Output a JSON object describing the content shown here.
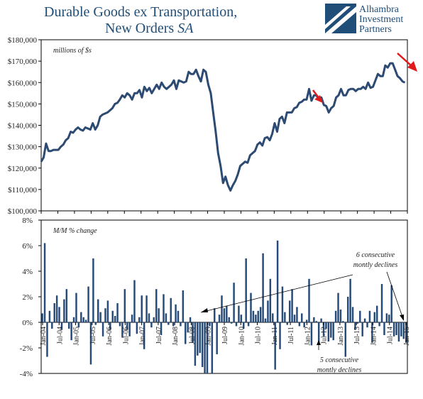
{
  "title": {
    "line1": "Durable Goods ex Transportation,",
    "line2_main": "New Orders",
    "line2_suffix": "SA"
  },
  "logo": {
    "line1": "Alhambra",
    "line2": "Investment",
    "line3": "Partners"
  },
  "colors": {
    "series": "#2c4a72",
    "bars": "#274b78",
    "arrows": "#e01a1a",
    "title": "#1f4e79",
    "text": "#222222"
  },
  "chart_data": [
    {
      "type": "line",
      "unit_label": "millions of $s",
      "ylim": [
        100000,
        180000
      ],
      "y_ticks": [
        "$100,000",
        "$110,000",
        "$120,000",
        "$130,000",
        "$140,000",
        "$150,000",
        "$160,000",
        "$170,000",
        "$180,000"
      ],
      "x_start": "Jan-04",
      "x_end": "Jan-15",
      "values": [
        123000,
        125000,
        131500,
        128000,
        128000,
        128500,
        128500,
        128500,
        130000,
        131000,
        133000,
        134000,
        137000,
        136500,
        138000,
        139000,
        138000,
        137500,
        139000,
        138500,
        138000,
        141000,
        138000,
        140000,
        144000,
        145000,
        145500,
        146000,
        147000,
        148000,
        150000,
        150500,
        152000,
        154000,
        153000,
        155000,
        154000,
        152000,
        155000,
        155000,
        156500,
        153000,
        158000,
        156000,
        157500,
        155000,
        157000,
        159000,
        157000,
        160000,
        158000,
        157000,
        158000,
        159000,
        161000,
        157000,
        161000,
        160500,
        160000,
        160500,
        165000,
        164000,
        164000,
        166000,
        163000,
        160500,
        166000,
        165000,
        159000,
        155000,
        146000,
        137000,
        127000,
        121000,
        113000,
        116000,
        112000,
        109500,
        112000,
        114000,
        117000,
        121000,
        122000,
        123000,
        122500,
        126000,
        127000,
        128000,
        131000,
        132000,
        130500,
        134000,
        134500,
        133000,
        136000,
        141000,
        137000,
        143000,
        144000,
        141000,
        146000,
        146000,
        146000,
        148000,
        148500,
        150500,
        151000,
        152000,
        152000,
        157000,
        151500,
        154000,
        154000,
        152000,
        153000,
        149500,
        149000,
        146000,
        148000,
        149000,
        153000,
        154000,
        157000,
        154000,
        154000,
        156500,
        157000,
        157000,
        156000,
        157000,
        157000,
        158000,
        157000,
        160000,
        157500,
        158000,
        161000,
        164000,
        163000,
        163000,
        168000,
        167000,
        169000,
        169000,
        166000,
        163000,
        162000,
        160500,
        160000
      ],
      "arrow_labels": []
    },
    {
      "type": "bar",
      "unit_label": "M/M % change",
      "ylim": [
        -4,
        8
      ],
      "y_ticks": [
        "-4%",
        "-2%",
        "0%",
        "2%",
        "4%",
        "6%",
        "8%"
      ],
      "x_ticks": [
        "Jan-04",
        "Jul-04",
        "Jan-05",
        "Jul-05",
        "Jan-06",
        "Jul-06",
        "Jan-07",
        "Jul-07",
        "Jan-08",
        "Jul-08",
        "Jan-09",
        "Jul-09",
        "Jan-10",
        "Jul-10",
        "Jan-11",
        "Jul-11",
        "Jan-12",
        "Jul-12",
        "Jan-13",
        "Jul-13",
        "Jan-14",
        "Jul-14",
        "Jan-15"
      ],
      "values": [
        0.7,
        6.2,
        -2.7,
        0.9,
        -0.5,
        1.5,
        2.1,
        1.2,
        -0.6,
        1.8,
        2.6,
        -0.5,
        -1.4,
        0.4,
        2.3,
        -0.4,
        0.8,
        0.4,
        0.2,
        2.8,
        -3.3,
        5.0,
        -0.2,
        1.8,
        0.8,
        -1.1,
        1.1,
        1.7,
        -0.6,
        0.9,
        0.5,
        1.5,
        -0.3,
        -1.2,
        2.6,
        -0.6,
        -1.1,
        0.6,
        3.3,
        -0.9,
        0.4,
        2.1,
        -2.1,
        2.1,
        0.7,
        -0.4,
        0.4,
        2.6,
        1.1,
        -1.0,
        2.2,
        0.7,
        -0.2,
        1.9,
        -0.3,
        1.4,
        0.9,
        -0.3,
        2.5,
        -1.7,
        -0.8,
        0.4,
        -1.6,
        -3.4,
        -2.6,
        -2.4,
        -3.5,
        -4.0,
        -4.0,
        -0.3,
        -4.0,
        1.1,
        -2.5,
        0.6,
        2.1,
        1.1,
        1.3,
        0.4,
        -0.1,
        3.1,
        -0.3,
        1.3,
        0.6,
        -0.5,
        5.0,
        -0.3,
        2.3,
        0.9,
        0.6,
        0.9,
        1.2,
        5.4,
        0.3,
        1.7,
        3.4,
        0.7,
        -3.7,
        6.4,
        -2.1,
        2.8,
        0.8,
        -0.2,
        1.7,
        2.6,
        0.6,
        1.2,
        -0.3,
        0.7,
        -0.4,
        0.2,
        3.4,
        -1.8,
        0.4,
        0.1,
        -1.6,
        0.3,
        -1.1,
        -0.5,
        -1.5,
        -1.2,
        -1.4,
        0.9,
        2.3,
        1.0,
        0.1,
        -2.7,
        2.0,
        3.4,
        1.2,
        -0.6,
        -0.1,
        0.9,
        -1.1,
        0.3,
        -0.4,
        0.9,
        -1.6,
        0.8,
        1.3,
        -0.3,
        3.0,
        -1.0,
        0.7,
        0.6,
        2.9,
        -1.1,
        -1.0,
        -1.5,
        -1.1,
        -1.3,
        -1.6
      ],
      "annotations": [
        {
          "line1": "6 consecutive",
          "line2": "montly declines"
        },
        {
          "line1": "5 consecutive",
          "line2": "montly declines"
        }
      ]
    }
  ]
}
